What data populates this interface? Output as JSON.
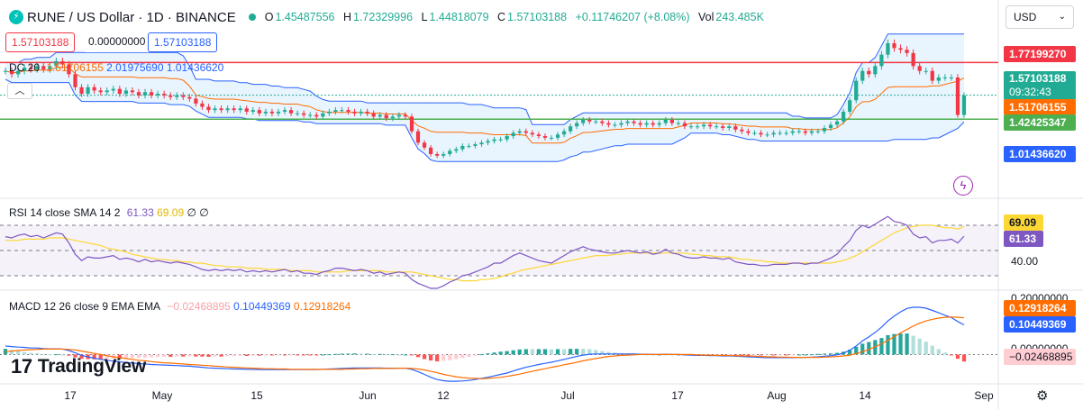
{
  "header": {
    "symbol_icon": "thorchain-icon",
    "title": "RUNE / US Dollar · 1D · BINANCE",
    "ohlc": [
      {
        "k": "O",
        "v": "1.45487556"
      },
      {
        "k": "H",
        "v": "1.72329996"
      },
      {
        "k": "L",
        "v": "1.44818079"
      },
      {
        "k": "C",
        "v": "1.57103188"
      }
    ],
    "change": "+0.11746207 (+8.08%)",
    "volume_label": "Vol",
    "volume": "243.485K"
  },
  "trade": {
    "sell_price": "1.57103188",
    "spread": "0.00000000",
    "buy_price": "1.57103188"
  },
  "indicators": {
    "dc": {
      "name": "DC 20",
      "v1": "1.51706155",
      "v2": "2.01975690",
      "v3": "1.01436620"
    },
    "rsi": {
      "name": "RSI 14 close SMA 14 2",
      "v1": "61.33",
      "v2": "69.09",
      "v3": "∅",
      "v4": "∅"
    },
    "macd": {
      "name": "MACD 12 26 close 9 EMA EMA",
      "v1": "−0.02468895",
      "v2": "0.10449369",
      "v3": "0.12918264"
    }
  },
  "currency": {
    "value": "USD",
    "icon": "chevron-down-icon"
  },
  "price_tags": {
    "high_line": "1.77199270",
    "last_price": "1.57103188",
    "countdown": "09:32:43",
    "dc_basis": "1.51706155",
    "low_line": "1.42425347",
    "dc_lower": "1.01436620"
  },
  "rsi_axis": {
    "tag_sma": "69.09",
    "tag_rsi": "61.33",
    "level": "40.00"
  },
  "macd_axis": {
    "top": "0.20000000",
    "tag_signal": "0.12918264",
    "tag_macd": "0.10449369",
    "zero": "0.00000000",
    "tag_hist": "−0.02468895"
  },
  "x_axis": {
    "labels": [
      "17",
      "May",
      "15",
      "Jun",
      "12",
      "Jul",
      "17",
      "Aug",
      "14",
      "Sep"
    ]
  },
  "branding": {
    "logo_text": "TradingView"
  },
  "colors": {
    "up": "#22ab94",
    "down": "#f23645",
    "dc_band": "#2962ff",
    "dc_basis": "#ff6d00",
    "rsi": "#7e57c2",
    "rsi_ma": "#fdd835",
    "macd": "#2962ff",
    "signal": "#ff6d00",
    "high_line": "#f23645",
    "low_line": "#4caf50"
  },
  "chart_data": [
    {
      "type": "candlestick",
      "title": "RUNE / US Dollar · 1D · BINANCE",
      "x_range": [
        "Apr 10",
        "Aug 29"
      ],
      "ylim": [
        0.95,
        2.1
      ],
      "closes": [
        1.72,
        1.7,
        1.72,
        1.74,
        1.73,
        1.75,
        1.73,
        1.75,
        1.78,
        1.76,
        1.7,
        1.62,
        1.58,
        1.62,
        1.6,
        1.59,
        1.6,
        1.61,
        1.58,
        1.6,
        1.59,
        1.57,
        1.59,
        1.57,
        1.58,
        1.57,
        1.56,
        1.57,
        1.56,
        1.55,
        1.52,
        1.5,
        1.48,
        1.49,
        1.48,
        1.49,
        1.48,
        1.49,
        1.47,
        1.48,
        1.46,
        1.47,
        1.46,
        1.47,
        1.48,
        1.46,
        1.46,
        1.45,
        1.45,
        1.44,
        1.46,
        1.47,
        1.48,
        1.48,
        1.47,
        1.46,
        1.47,
        1.46,
        1.44,
        1.45,
        1.43,
        1.44,
        1.45,
        1.44,
        1.35,
        1.28,
        1.25,
        1.21,
        1.2,
        1.21,
        1.23,
        1.24,
        1.26,
        1.26,
        1.27,
        1.28,
        1.29,
        1.3,
        1.3,
        1.32,
        1.34,
        1.35,
        1.34,
        1.33,
        1.32,
        1.31,
        1.31,
        1.33,
        1.35,
        1.38,
        1.4,
        1.42,
        1.41,
        1.41,
        1.4,
        1.39,
        1.39,
        1.4,
        1.41,
        1.4,
        1.39,
        1.4,
        1.39,
        1.4,
        1.42,
        1.4,
        1.4,
        1.38,
        1.38,
        1.38,
        1.39,
        1.38,
        1.38,
        1.37,
        1.38,
        1.36,
        1.35,
        1.34,
        1.34,
        1.33,
        1.33,
        1.34,
        1.34,
        1.34,
        1.35,
        1.35,
        1.34,
        1.35,
        1.35,
        1.37,
        1.39,
        1.41,
        1.47,
        1.54,
        1.66,
        1.72,
        1.7,
        1.75,
        1.82,
        1.89,
        1.86,
        1.85,
        1.83,
        1.75,
        1.72,
        1.72,
        1.66,
        1.68,
        1.68,
        1.68,
        1.45,
        1.57
      ],
      "donchian_20": {
        "upper": "2.01975690",
        "basis": "1.51706155",
        "lower": "1.01436620"
      },
      "horizontal_lines": [
        1.7719927,
        1.42425347
      ],
      "last": 1.57103188
    },
    {
      "type": "line",
      "title": "RSI 14 close SMA 14 2",
      "ylim": [
        20,
        90
      ],
      "bands": [
        30,
        50,
        70
      ],
      "series": [
        {
          "name": "RSI",
          "values": [
            61,
            60,
            62,
            63,
            61,
            62,
            60,
            62,
            64,
            63,
            56,
            47,
            42,
            45,
            44,
            44,
            45,
            46,
            43,
            44,
            43,
            41,
            43,
            41,
            42,
            41,
            40,
            41,
            40,
            39,
            37,
            35,
            34,
            35,
            34,
            35,
            34,
            35,
            33,
            34,
            33,
            34,
            33,
            34,
            35,
            33,
            34,
            32,
            32,
            31,
            33,
            34,
            36,
            36,
            35,
            34,
            35,
            34,
            32,
            33,
            31,
            32,
            33,
            32,
            27,
            24,
            22,
            20,
            20,
            22,
            25,
            27,
            30,
            31,
            33,
            35,
            37,
            40,
            40,
            43,
            46,
            48,
            46,
            44,
            42,
            41,
            40,
            43,
            46,
            49,
            51,
            53,
            51,
            50,
            49,
            48,
            48,
            49,
            50,
            49,
            48,
            49,
            47,
            48,
            51,
            48,
            47,
            45,
            44,
            44,
            45,
            44,
            44,
            43,
            44,
            41,
            40,
            39,
            39,
            38,
            38,
            39,
            39,
            39,
            40,
            40,
            39,
            40,
            40,
            42,
            44,
            47,
            53,
            58,
            66,
            70,
            68,
            71,
            74,
            77,
            73,
            72,
            70,
            63,
            60,
            61,
            56,
            58,
            58,
            59,
            56,
            61.33
          ]
        },
        {
          "name": "SMA",
          "values": [
            58,
            58,
            58,
            59,
            59,
            59,
            59,
            60,
            60,
            60,
            59,
            58,
            57,
            56,
            55,
            54,
            52,
            51,
            50,
            49,
            47,
            46,
            45,
            44,
            43,
            43,
            42,
            42,
            41,
            41,
            40,
            40,
            39,
            38,
            38,
            37,
            37,
            37,
            36,
            36,
            36,
            35,
            35,
            35,
            35,
            34,
            34,
            34,
            34,
            33,
            33,
            33,
            33,
            33,
            34,
            34,
            34,
            34,
            34,
            34,
            33,
            33,
            33,
            33,
            33,
            32,
            31,
            30,
            29,
            28,
            27,
            27,
            26,
            26,
            26,
            27,
            27,
            28,
            29,
            31,
            32,
            34,
            35,
            36,
            37,
            38,
            39,
            40,
            41,
            42,
            43,
            44,
            45,
            46,
            46,
            46,
            47,
            47,
            48,
            48,
            48,
            48,
            48,
            48,
            48,
            48,
            48,
            48,
            47,
            47,
            46,
            46,
            45,
            45,
            45,
            44,
            43,
            43,
            42,
            42,
            41,
            41,
            40,
            40,
            40,
            40,
            40,
            40,
            40,
            40,
            40,
            41,
            42,
            44,
            46,
            49,
            52,
            55,
            58,
            61,
            64,
            66,
            68,
            69,
            70,
            70,
            70,
            69,
            68,
            68,
            67,
            69.09
          ]
        }
      ]
    },
    {
      "type": "bar+line",
      "title": "MACD 12 26 close 9 EMA EMA",
      "ylim": [
        -0.1,
        0.22
      ],
      "series": [
        {
          "name": "MACD",
          "values": [
            0.03,
            0.028,
            0.026,
            0.025,
            0.023,
            0.023,
            0.021,
            0.02,
            0.02,
            0.019,
            0.014,
            0.006,
            -0.003,
            -0.008,
            -0.013,
            -0.017,
            -0.02,
            -0.023,
            -0.026,
            -0.028,
            -0.03,
            -0.032,
            -0.033,
            -0.035,
            -0.036,
            -0.037,
            -0.038,
            -0.039,
            -0.04,
            -0.041,
            -0.043,
            -0.045,
            -0.047,
            -0.048,
            -0.049,
            -0.05,
            -0.051,
            -0.051,
            -0.052,
            -0.052,
            -0.053,
            -0.053,
            -0.053,
            -0.053,
            -0.053,
            -0.053,
            -0.053,
            -0.053,
            -0.053,
            -0.053,
            -0.052,
            -0.051,
            -0.05,
            -0.049,
            -0.048,
            -0.047,
            -0.047,
            -0.047,
            -0.047,
            -0.047,
            -0.048,
            -0.048,
            -0.048,
            -0.048,
            -0.052,
            -0.06,
            -0.07,
            -0.08,
            -0.088,
            -0.092,
            -0.094,
            -0.094,
            -0.093,
            -0.091,
            -0.088,
            -0.084,
            -0.08,
            -0.075,
            -0.07,
            -0.065,
            -0.058,
            -0.051,
            -0.045,
            -0.04,
            -0.035,
            -0.031,
            -0.027,
            -0.022,
            -0.017,
            -0.012,
            -0.007,
            -0.002,
            0.001,
            0.002,
            0.002,
            0.002,
            0.002,
            0.002,
            0.002,
            0.002,
            0.001,
            0.001,
            0.0,
            0.0,
            0.001,
            0.0,
            0.0,
            -0.001,
            -0.002,
            -0.003,
            -0.003,
            -0.004,
            -0.004,
            -0.005,
            -0.005,
            -0.006,
            -0.007,
            -0.008,
            -0.009,
            -0.01,
            -0.011,
            -0.011,
            -0.011,
            -0.011,
            -0.011,
            -0.01,
            -0.01,
            -0.009,
            -0.008,
            -0.006,
            -0.004,
            -0.001,
            0.005,
            0.015,
            0.03,
            0.048,
            0.062,
            0.078,
            0.096,
            0.118,
            0.135,
            0.15,
            0.162,
            0.166,
            0.166,
            0.163,
            0.155,
            0.147,
            0.138,
            0.13,
            0.116,
            0.10449369
          ]
        },
        {
          "name": "Signal",
          "values": [
            0.01,
            0.012,
            0.014,
            0.016,
            0.017,
            0.018,
            0.019,
            0.019,
            0.019,
            0.019,
            0.018,
            0.016,
            0.012,
            0.008,
            0.004,
            -0.0,
            -0.004,
            -0.008,
            -0.011,
            -0.014,
            -0.017,
            -0.02,
            -0.022,
            -0.025,
            -0.027,
            -0.029,
            -0.03,
            -0.032,
            -0.033,
            -0.035,
            -0.036,
            -0.038,
            -0.039,
            -0.041,
            -0.042,
            -0.044,
            -0.045,
            -0.046,
            -0.047,
            -0.048,
            -0.049,
            -0.05,
            -0.05,
            -0.051,
            -0.051,
            -0.052,
            -0.052,
            -0.052,
            -0.052,
            -0.052,
            -0.052,
            -0.052,
            -0.052,
            -0.052,
            -0.051,
            -0.051,
            -0.05,
            -0.05,
            -0.049,
            -0.049,
            -0.049,
            -0.049,
            -0.048,
            -0.048,
            -0.049,
            -0.051,
            -0.054,
            -0.059,
            -0.064,
            -0.07,
            -0.074,
            -0.078,
            -0.081,
            -0.083,
            -0.084,
            -0.085,
            -0.084,
            -0.082,
            -0.08,
            -0.077,
            -0.073,
            -0.069,
            -0.064,
            -0.059,
            -0.054,
            -0.05,
            -0.045,
            -0.041,
            -0.036,
            -0.032,
            -0.027,
            -0.022,
            -0.018,
            -0.014,
            -0.01,
            -0.007,
            -0.005,
            -0.003,
            -0.002,
            -0.001,
            -0.0,
            0.0,
            0.0,
            0.0,
            0.0,
            0.0,
            0.0,
            0.0,
            -0.0,
            -0.001,
            -0.002,
            -0.002,
            -0.003,
            -0.003,
            -0.004,
            -0.004,
            -0.005,
            -0.005,
            -0.006,
            -0.007,
            -0.008,
            -0.008,
            -0.009,
            -0.009,
            -0.01,
            -0.01,
            -0.01,
            -0.01,
            -0.01,
            -0.009,
            -0.008,
            -0.007,
            -0.005,
            -0.002,
            0.003,
            0.01,
            0.018,
            0.027,
            0.038,
            0.05,
            0.063,
            0.076,
            0.088,
            0.1,
            0.11,
            0.118,
            0.124,
            0.128,
            0.131,
            0.132,
            0.131,
            0.12918264
          ]
        }
      ],
      "last_histogram": -0.02468895
    }
  ]
}
